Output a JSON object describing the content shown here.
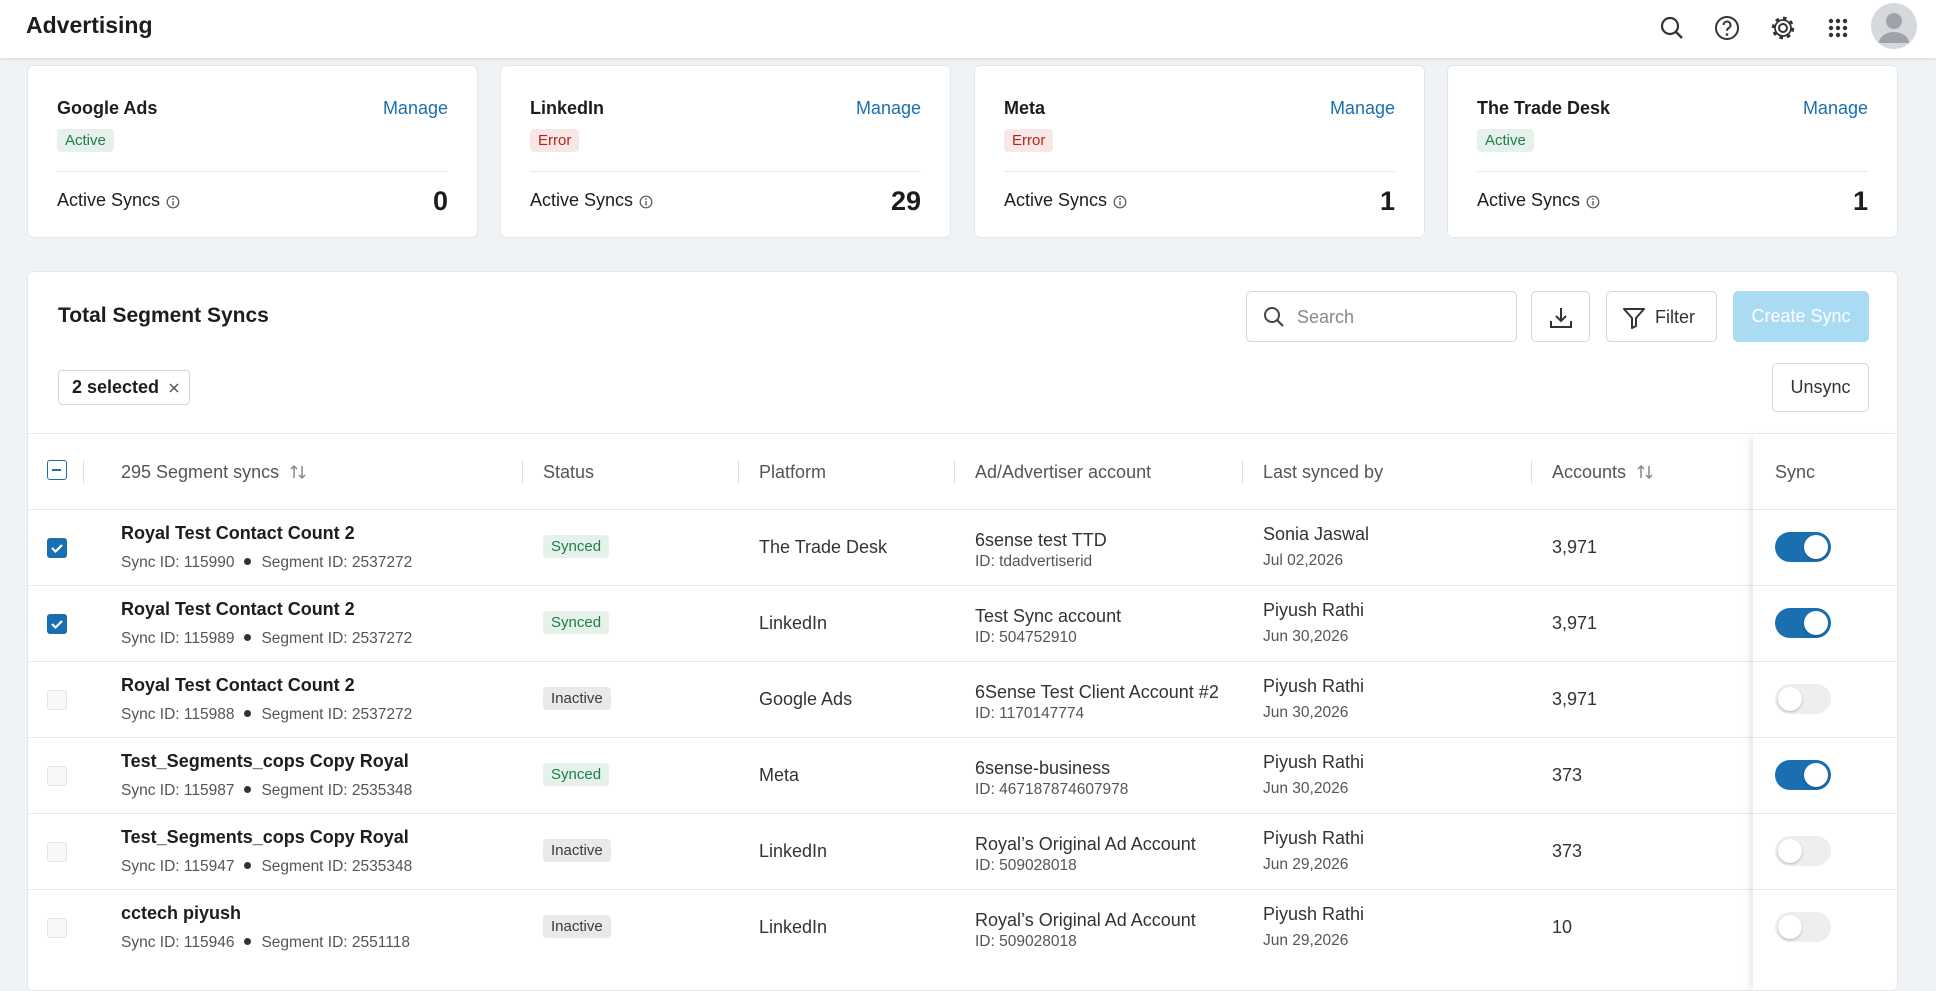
{
  "header": {
    "title": "Advertising"
  },
  "cards": [
    {
      "name": "Google Ads",
      "manage": "Manage",
      "status": "Active",
      "badge_color": "#1e7e45",
      "metric_label": "Active Syncs",
      "metric_value": 0
    },
    {
      "name": "LinkedIn",
      "manage": "Manage",
      "status": "Error",
      "badge_color": "#b42318",
      "metric_label": "Active Syncs",
      "metric_value": 29
    },
    {
      "name": "Meta",
      "manage": "Manage",
      "status": "Error",
      "badge_color": "#b42318",
      "metric_label": "Active Syncs",
      "metric_value": 1
    },
    {
      "name": "The Trade Desk",
      "manage": "Manage",
      "status": "Active",
      "badge_color": "#1e7e45",
      "metric_label": "Active Syncs",
      "metric_value": 1
    }
  ],
  "panel": {
    "title": "Total Segment Syncs",
    "search_placeholder": "Search",
    "filter": "Filter",
    "create": "Create Sync",
    "selected": "2 selected",
    "unsync": "Unsync"
  },
  "table": {
    "columns": [
      "295 Segment syncs",
      "Status",
      "Platform",
      "Ad/Advertiser account",
      "Last synced by",
      "Accounts",
      "Sync"
    ],
    "rows": [
      {
        "name": "Royal Test Contact Count 2",
        "sync_id": "Sync ID: 115990",
        "segment_id": "Segment ID: 2537272",
        "status": "Synced",
        "badge_color": "#1e7e45",
        "platform": "The Trade Desk",
        "account": "6sense test TTD",
        "account_id": "ID: tdadvertiserid",
        "user": "Sonia Jaswal",
        "date": "Jul 02,2026",
        "accounts": "3,971",
        "checked": true,
        "sync": true
      },
      {
        "name": "Royal Test Contact Count 2",
        "sync_id": "Sync ID: 115989",
        "segment_id": "Segment ID: 2537272",
        "status": "Synced",
        "badge_color": "#1e7e45",
        "platform": "LinkedIn",
        "account": "Test Sync account",
        "account_id": "ID: 504752910",
        "user": "Piyush Rathi",
        "date": "Jun 30,2026",
        "accounts": "3,971",
        "checked": true,
        "sync": true
      },
      {
        "name": "Royal Test Contact Count 2",
        "sync_id": "Sync ID: 115988",
        "segment_id": "Segment ID: 2537272",
        "status": "Inactive",
        "badge_color": "#3a3a3a",
        "platform": "Google Ads",
        "account": "6Sense Test Client Account #2",
        "account_id": "ID: 1170147774",
        "user": "Piyush Rathi",
        "date": "Jun 30,2026",
        "accounts": "3,971",
        "checked": false,
        "sync": false
      },
      {
        "name": "Test_Segments_cops Copy Royal",
        "sync_id": "Sync ID: 115987",
        "segment_id": "Segment ID: 2535348",
        "status": "Synced",
        "badge_color": "#1e7e45",
        "platform": "Meta",
        "account": "6sense-business",
        "account_id": "ID: 467187874607978",
        "user": "Piyush Rathi",
        "date": "Jun 30,2026",
        "accounts": "373",
        "checked": false,
        "sync": true
      },
      {
        "name": "Test_Segments_cops Copy Royal",
        "sync_id": "Sync ID: 115947",
        "segment_id": "Segment ID: 2535348",
        "status": "Inactive",
        "badge_color": "#3a3a3a",
        "platform": "LinkedIn",
        "account": "Royal’s Original Ad Account",
        "account_id": "ID: 509028018",
        "user": "Piyush Rathi",
        "date": "Jun 29,2026",
        "accounts": "373",
        "checked": false,
        "sync": false
      },
      {
        "name": "cctech piyush",
        "sync_id": "Sync ID: 115946",
        "segment_id": "Segment ID: 2551118",
        "status": "Inactive",
        "badge_color": "#3a3a3a",
        "platform": "LinkedIn",
        "account": "Royal’s Original Ad Account",
        "account_id": "ID: 509028018",
        "user": "Piyush Rathi",
        "date": "Jun 29,2026",
        "accounts": "10",
        "checked": false,
        "sync": false
      }
    ]
  }
}
